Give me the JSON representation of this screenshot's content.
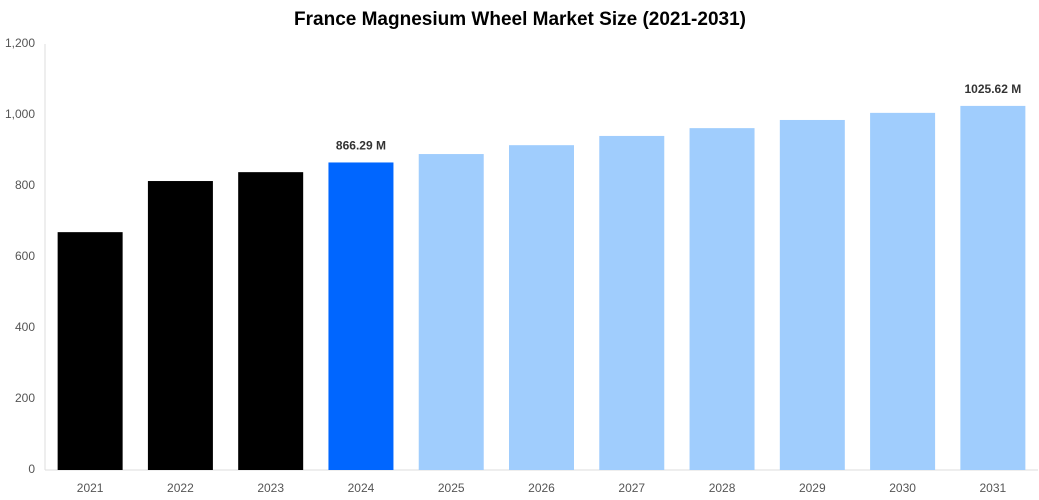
{
  "chart_data": {
    "type": "bar",
    "title": "France Magnesium Wheel Market Size (2021-2031)",
    "categories": [
      "2021",
      "2022",
      "2023",
      "2024",
      "2025",
      "2026",
      "2027",
      "2028",
      "2029",
      "2030",
      "2031"
    ],
    "values": [
      670,
      814,
      839,
      866.29,
      890,
      915,
      941,
      963,
      986,
      1006,
      1025.62
    ],
    "value_labels": [
      null,
      null,
      null,
      "866.29 M",
      null,
      null,
      null,
      null,
      null,
      null,
      "1025.62 M"
    ],
    "colors": [
      "#000000",
      "#000000",
      "#000000",
      "#0066ff",
      "#a0cdfd",
      "#a0cdfd",
      "#a0cdfd",
      "#a0cdfd",
      "#a0cdfd",
      "#a0cdfd",
      "#a0cdfd"
    ],
    "ylim": [
      0,
      1200
    ],
    "yticks": [
      0,
      200,
      400,
      600,
      800,
      {
        "value": 1000,
        "label": "1,000"
      },
      {
        "value": 1200,
        "label": "1,200"
      }
    ],
    "grid": false
  }
}
